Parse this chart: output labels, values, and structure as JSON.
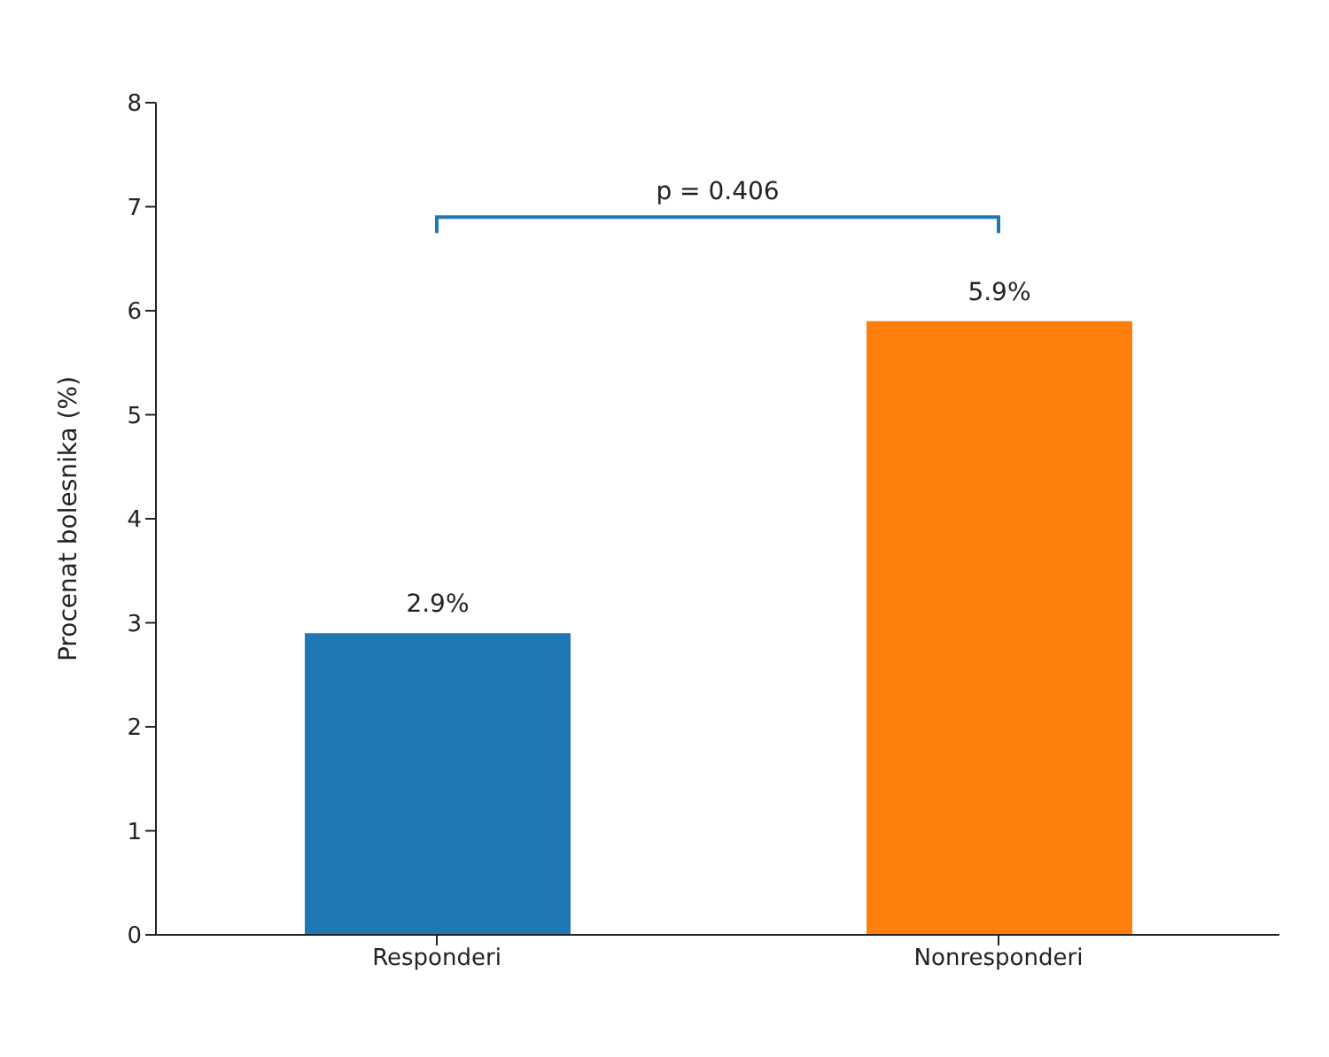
{
  "chart_data": {
    "type": "bar",
    "ylabel": "Procenat bolesnika (%)",
    "categories": [
      "Responderi",
      "Nonresponderi"
    ],
    "values": [
      2.9,
      5.9
    ],
    "colors": [
      "#1f77b4",
      "#ff7f0e"
    ],
    "value_labels": [
      "2.9%",
      "5.9%"
    ],
    "ylim": [
      0,
      8
    ],
    "yticks": [
      0,
      1,
      2,
      3,
      4,
      5,
      6,
      7,
      8
    ],
    "grid": false,
    "annotations": [
      "p = 0.406"
    ]
  }
}
